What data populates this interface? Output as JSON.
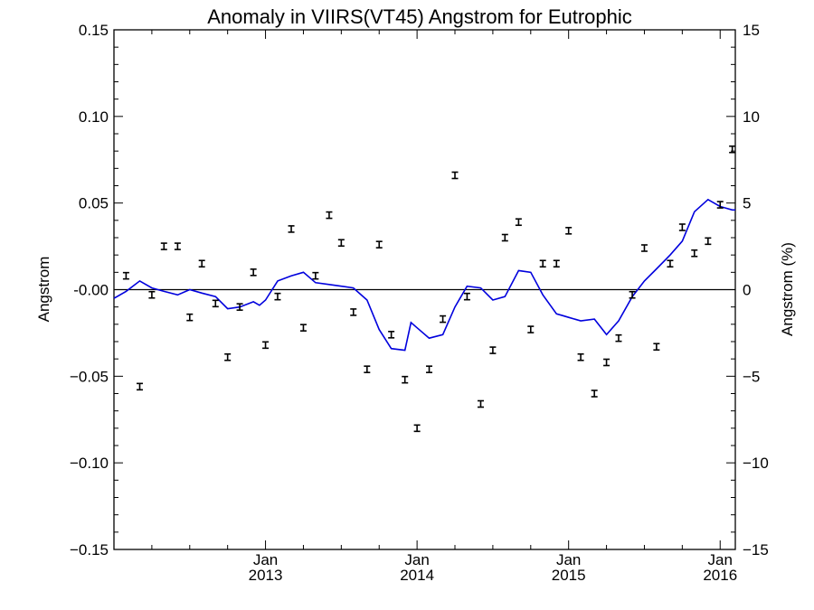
{
  "chart_data": {
    "type": "scatter",
    "title": "Anomaly in VIIRS(VT45) Angstrom for Eutrophic",
    "ylabel": "Angstrom",
    "y2label": "Angstrom (%)",
    "ylim": [
      -0.15,
      0.15
    ],
    "y2lim": [
      -15,
      15
    ],
    "xlim": [
      2012.0,
      2016.1
    ],
    "yticks": [
      "0.15",
      "0.10",
      "0.05",
      "-0.00",
      "−0.05",
      "−0.10",
      "−0.15"
    ],
    "y2ticks": [
      "15",
      "10",
      "5",
      "0",
      "−5",
      "−10",
      "−15"
    ],
    "xticks": [
      {
        "month": "Jan",
        "year": "2013"
      },
      {
        "month": "Jan",
        "year": "2014"
      },
      {
        "month": "Jan",
        "year": "2015"
      },
      {
        "month": "Jan",
        "year": "2016"
      }
    ],
    "zero_line": true,
    "grid": false,
    "series": [
      {
        "kind": "points_with_errorbars",
        "color": "#000000",
        "x": [
          2012.08,
          2012.17,
          2012.25,
          2012.33,
          2012.42,
          2012.5,
          2012.58,
          2012.67,
          2012.75,
          2012.83,
          2012.92,
          2013.0,
          2013.08,
          2013.17,
          2013.25,
          2013.33,
          2013.42,
          2013.5,
          2013.58,
          2013.67,
          2013.75,
          2013.83,
          2013.92,
          2014.0,
          2014.08,
          2014.17,
          2014.25,
          2014.33,
          2014.42,
          2014.5,
          2014.58,
          2014.67,
          2014.75,
          2014.83,
          2014.92,
          2015.0,
          2015.08,
          2015.17,
          2015.25,
          2015.33,
          2015.42,
          2015.5,
          2015.58,
          2015.67,
          2015.75,
          2015.83,
          2015.92,
          2016.0,
          2016.08
        ],
        "y": [
          0.008,
          -0.056,
          -0.003,
          0.025,
          0.025,
          -0.016,
          0.015,
          -0.008,
          -0.039,
          -0.01,
          0.01,
          -0.032,
          -0.004,
          0.035,
          -0.022,
          0.008,
          0.043,
          0.027,
          -0.013,
          -0.046,
          0.026,
          -0.026,
          -0.052,
          -0.08,
          -0.046,
          -0.017,
          0.066,
          -0.004,
          -0.066,
          -0.035,
          0.03,
          0.039,
          -0.023,
          0.015,
          0.015,
          0.034,
          -0.039,
          -0.06,
          -0.042,
          -0.028,
          -0.003,
          0.024,
          -0.033,
          0.015,
          0.036,
          0.021,
          0.028,
          0.049,
          0.081
        ]
      },
      {
        "kind": "line",
        "color": "#0000dd",
        "x": [
          2012.0,
          2012.08,
          2012.17,
          2012.25,
          2012.33,
          2012.42,
          2012.5,
          2012.58,
          2012.67,
          2012.75,
          2012.83,
          2012.92,
          2012.96,
          2013.0,
          2013.08,
          2013.17,
          2013.25,
          2013.33,
          2013.42,
          2013.5,
          2013.58,
          2013.67,
          2013.75,
          2013.83,
          2013.92,
          2013.96,
          2014.0,
          2014.08,
          2014.17,
          2014.25,
          2014.33,
          2014.42,
          2014.5,
          2014.58,
          2014.67,
          2014.75,
          2014.83,
          2014.92,
          2014.96,
          2015.0,
          2015.08,
          2015.17,
          2015.25,
          2015.33,
          2015.42,
          2015.5,
          2015.58,
          2015.67,
          2015.75,
          2015.83,
          2015.92,
          2016.0,
          2016.04,
          2016.08,
          2016.1
        ],
        "y": [
          -0.005,
          -0.001,
          0.005,
          0.001,
          -0.001,
          -0.003,
          0.0,
          -0.002,
          -0.004,
          -0.011,
          -0.01,
          -0.007,
          -0.009,
          -0.006,
          0.005,
          0.008,
          0.01,
          0.004,
          0.003,
          0.002,
          0.001,
          -0.006,
          -0.023,
          -0.034,
          -0.035,
          -0.019,
          -0.022,
          -0.028,
          -0.026,
          -0.01,
          0.002,
          0.001,
          -0.006,
          -0.004,
          0.011,
          0.01,
          -0.003,
          -0.014,
          -0.015,
          -0.016,
          -0.018,
          -0.017,
          -0.026,
          -0.018,
          -0.004,
          0.005,
          0.012,
          0.02,
          0.028,
          0.045,
          0.052,
          0.048,
          0.047,
          0.046,
          0.046
        ]
      }
    ]
  }
}
